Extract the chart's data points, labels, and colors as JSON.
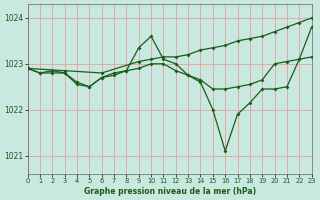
{
  "bg_color": "#c8e8e0",
  "grid_color": "#e8a0a0",
  "line_color": "#1a5c1a",
  "xlim": [
    0,
    23
  ],
  "ylim": [
    1020.6,
    1024.3
  ],
  "yticks": [
    1021,
    1022,
    1023,
    1024
  ],
  "xticks": [
    0,
    1,
    2,
    3,
    4,
    5,
    6,
    7,
    8,
    9,
    10,
    11,
    12,
    13,
    14,
    15,
    16,
    17,
    18,
    19,
    20,
    21,
    22,
    23
  ],
  "xlabel": "Graphe pression niveau de la mer (hPa)",
  "line_A": {
    "x": [
      0,
      3,
      6,
      9,
      10,
      11,
      12,
      13,
      14,
      15,
      16,
      17,
      18,
      19,
      20,
      21,
      22,
      23
    ],
    "y": [
      1022.9,
      1022.85,
      1022.8,
      1023.05,
      1023.1,
      1023.15,
      1023.15,
      1023.2,
      1023.3,
      1023.35,
      1023.4,
      1023.5,
      1023.55,
      1023.6,
      1023.7,
      1023.8,
      1023.9,
      1024.0
    ]
  },
  "line_B": {
    "x": [
      0,
      1,
      2,
      3,
      4,
      5,
      6,
      7,
      8,
      9,
      10,
      11,
      12,
      13,
      14,
      15,
      16,
      17,
      18,
      19,
      20,
      21,
      22,
      23
    ],
    "y": [
      1022.9,
      1022.8,
      1022.85,
      1022.8,
      1022.55,
      1022.5,
      1022.7,
      1022.75,
      1022.85,
      1023.35,
      1023.6,
      1023.1,
      1023.0,
      1022.75,
      1022.6,
      1022.0,
      1021.1,
      1021.9,
      1022.15,
      1022.45,
      1022.45,
      1022.5,
      1023.1,
      1023.8
    ]
  },
  "line_C": {
    "x": [
      0,
      1,
      2,
      3,
      4,
      5,
      6,
      7,
      8,
      9,
      10,
      11,
      12,
      13,
      14,
      15,
      16,
      17,
      18,
      19,
      20,
      21,
      22,
      23
    ],
    "y": [
      1022.9,
      1022.8,
      1022.8,
      1022.8,
      1022.6,
      1022.5,
      1022.7,
      1022.8,
      1022.85,
      1022.9,
      1023.0,
      1023.0,
      1022.85,
      1022.75,
      1022.65,
      1022.45,
      1022.45,
      1022.5,
      1022.55,
      1022.65,
      1023.0,
      1023.05,
      1023.1,
      1023.15
    ]
  }
}
